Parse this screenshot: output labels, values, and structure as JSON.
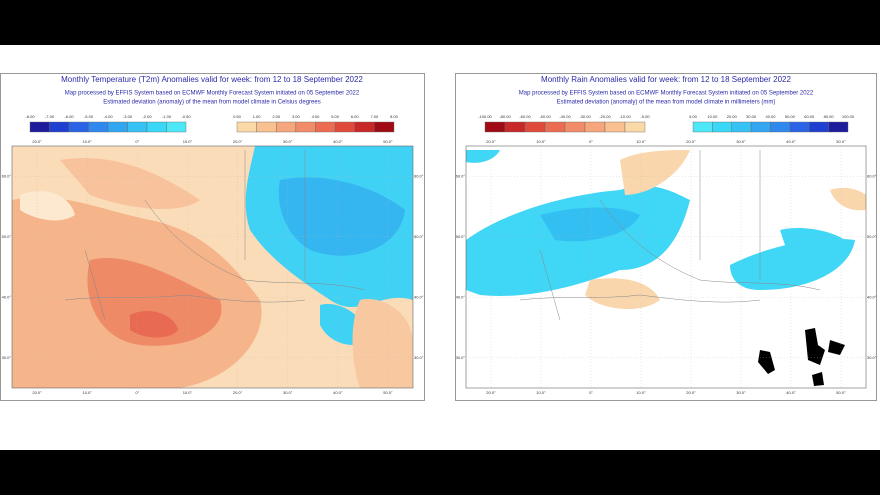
{
  "panels": [
    {
      "title": "Monthly Temperature (T2m) Anomalies valid for week: from 12 to 18 September 2022",
      "subtitle": "Map processed by EFFIS System based on ECMWF Monthly Forecast System initiated on 05 September 2022",
      "note": "Estimated deviation (anomaly) of the mean from model climate in Celsius degrees",
      "legend_low": {
        "labels": [
          "-8.00",
          "-7.00",
          "-6.00",
          "-5.00",
          "-4.00",
          "-3.00",
          "-2.00",
          "-1.00",
          "-0.50"
        ],
        "colors": [
          "#1c1c9c",
          "#1f3fd0",
          "#2a63e6",
          "#2f88ee",
          "#33a6f2",
          "#36c2f4",
          "#3ad8f6",
          "#4de8f8"
        ]
      },
      "legend_high": {
        "labels": [
          "0.50",
          "1.00",
          "2.00",
          "3.00",
          "4.00",
          "5.00",
          "6.00",
          "7.00",
          "8.00"
        ],
        "colors": [
          "#fbd9a6",
          "#f9c090",
          "#f6a67c",
          "#f28b68",
          "#ec6c52",
          "#e04a3c",
          "#c82828",
          "#a00a14"
        ]
      },
      "lon_labels": [
        "20.0°",
        "10.0°",
        "0°",
        "10.0°",
        "20.0°",
        "30.0°",
        "40.0°",
        "50.0°"
      ],
      "lat_labels": [
        "60.0°",
        "50.0°",
        "40.0°",
        "30.0°"
      ]
    },
    {
      "title": "Monthly Rain Anomalies valid for week: from 12 to 18 September 2022",
      "subtitle": "Map processed by EFFIS System based on ECMWF Monthly Forecast System initiated on 05 September 2022",
      "note": "Estimated deviation (anomaly) of the mean from model climate in millimeters (mm)",
      "legend_low": {
        "labels": [
          "-100.00",
          "-80.00",
          "-60.00",
          "-50.00",
          "-40.00",
          "-30.00",
          "-20.00",
          "-10.00",
          "-5.00"
        ],
        "colors": [
          "#a00a14",
          "#c82828",
          "#e04a3c",
          "#ec6c52",
          "#f28b68",
          "#f6a67c",
          "#f9c090",
          "#fbd9a6"
        ]
      },
      "legend_high": {
        "labels": [
          "5.00",
          "10.00",
          "20.00",
          "30.00",
          "40.00",
          "50.00",
          "60.00",
          "80.00",
          "100.00"
        ],
        "colors": [
          "#4de8f8",
          "#3ad8f6",
          "#36c2f4",
          "#33a6f2",
          "#2f88ee",
          "#2a63e6",
          "#1f3fd0",
          "#1c1c9c"
        ]
      },
      "lon_labels": [
        "20.0°",
        "10.0°",
        "0°",
        "10.0°",
        "20.0°",
        "30.0°",
        "40.0°",
        "50.0°"
      ],
      "lat_labels": [
        "60.0°",
        "50.0°",
        "40.0°",
        "30.0°"
      ]
    }
  ]
}
